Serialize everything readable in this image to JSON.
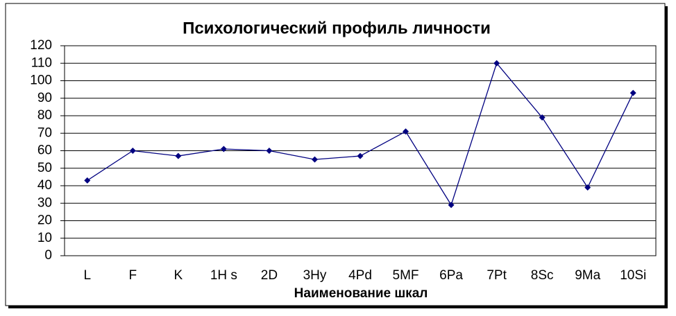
{
  "chart_data": {
    "type": "line",
    "title": "Психологический профиль личности",
    "x_label": "Наименование шкал",
    "categories": [
      "L",
      "F",
      "K",
      "1H s",
      "2D",
      "3Hy",
      "4Pd",
      "5MF",
      "6Pa",
      "7Pt",
      "8Sc",
      "9Ma",
      "10Si"
    ],
    "series": [
      {
        "color": "#000080",
        "values": [
          43,
          60,
          57,
          61,
          60,
          55,
          57,
          71,
          29,
          110,
          79,
          39,
          93
        ]
      }
    ],
    "ylim": [
      0,
      120
    ],
    "yticks": [
      0,
      10,
      20,
      30,
      40,
      50,
      60,
      70,
      80,
      90,
      100,
      110,
      120
    ],
    "grid": true
  }
}
